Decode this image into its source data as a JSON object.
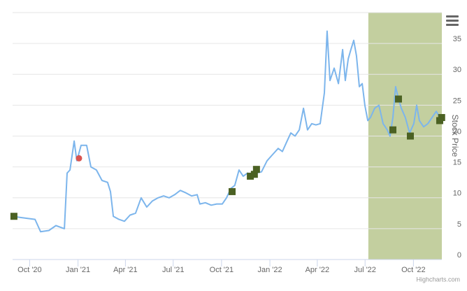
{
  "chart_data": {
    "type": "line",
    "y_axis_title": "Stock Price",
    "credits": "Highcharts.com",
    "xlim": [
      2020.659,
      2022.896
    ],
    "ylim": [
      0,
      40
    ],
    "xticks": [
      {
        "value": 2020.748,
        "label": "Oct '20"
      },
      {
        "value": 2021.0,
        "label": "Jan '21"
      },
      {
        "value": 2021.247,
        "label": "Apr '21"
      },
      {
        "value": 2021.496,
        "label": "Jul '21"
      },
      {
        "value": 2021.748,
        "label": "Oct '21"
      },
      {
        "value": 2022.0,
        "label": "Jan '22"
      },
      {
        "value": 2022.247,
        "label": "Apr '22"
      },
      {
        "value": 2022.496,
        "label": "Jul '22"
      },
      {
        "value": 2022.748,
        "label": "Oct '22"
      }
    ],
    "yticks": [
      0,
      5,
      10,
      15,
      20,
      25,
      30,
      35
    ],
    "grid": true,
    "plot_band": {
      "from": 2022.513,
      "to": 2022.896,
      "color": "#c3cf9f"
    },
    "series": [
      {
        "color": "#7cb5ec",
        "marker": "none",
        "x": [
          2020.659,
          2020.703,
          2020.776,
          2020.805,
          2020.848,
          2020.885,
          2020.929,
          2020.943,
          2020.958,
          2020.98,
          2020.994,
          2021.016,
          2021.045,
          2021.067,
          2021.096,
          2021.125,
          2021.154,
          2021.169,
          2021.184,
          2021.213,
          2021.242,
          2021.271,
          2021.3,
          2021.329,
          2021.358,
          2021.388,
          2021.417,
          2021.446,
          2021.475,
          2021.504,
          2021.533,
          2021.562,
          2021.592,
          2021.621,
          2021.635,
          2021.664,
          2021.694,
          2021.723,
          2021.752,
          2021.774,
          2021.796,
          2021.817,
          2021.839,
          2021.861,
          2021.883,
          2021.905,
          2021.927,
          2021.956,
          2021.985,
          2022.014,
          2022.043,
          2022.065,
          2022.087,
          2022.109,
          2022.131,
          2022.153,
          2022.175,
          2022.196,
          2022.218,
          2022.24,
          2022.262,
          2022.284,
          2022.298,
          2022.313,
          2022.335,
          2022.357,
          2022.379,
          2022.393,
          2022.408,
          2022.422,
          2022.437,
          2022.451,
          2022.466,
          2022.481,
          2022.495,
          2022.51,
          2022.524,
          2022.546,
          2022.568,
          2022.59,
          2022.612,
          2022.626,
          2022.641,
          2022.655,
          2022.67,
          2022.685,
          2022.706,
          2022.728,
          2022.75,
          2022.765,
          2022.779,
          2022.801,
          2022.823,
          2022.845,
          2022.867,
          2022.896
        ],
        "values": [
          7,
          6.8,
          6.5,
          4.5,
          4.7,
          5.5,
          5.0,
          14,
          14.5,
          19.2,
          16,
          18.5,
          18.5,
          15,
          14.5,
          12.8,
          12.5,
          11,
          7,
          6.5,
          6.2,
          7.2,
          7.5,
          10,
          8.5,
          9.5,
          10,
          10.3,
          10,
          10.5,
          11.2,
          10.8,
          10.3,
          10.5,
          9,
          9.2,
          8.8,
          9,
          9,
          10,
          11.5,
          12,
          14.5,
          13.5,
          14,
          13.2,
          14,
          14.2,
          16,
          17,
          18,
          17.5,
          19,
          20.5,
          20,
          21,
          24.5,
          21,
          22,
          21.8,
          22,
          27,
          37,
          29,
          31,
          28.5,
          34,
          29,
          32.5,
          34,
          35.5,
          33,
          28,
          28.5,
          25,
          22.5,
          23,
          24.5,
          25,
          22,
          21,
          20,
          23,
          28,
          26,
          24.5,
          23,
          20.5,
          22,
          25,
          22.5,
          21.5,
          22,
          23,
          24,
          22.5
        ]
      },
      {
        "color": "#4b6123",
        "marker": "square",
        "x": [
          2020.666,
          2021.803,
          2021.898,
          2021.919,
          2021.93,
          2022.641,
          2022.67,
          2022.732,
          2022.885,
          2022.895
        ],
        "values": [
          7,
          11,
          13.5,
          13.8,
          14.6,
          21,
          26,
          20,
          22.5,
          23
        ]
      },
      {
        "color": "#d9534f",
        "marker": "circle",
        "x": [
          2021.005
        ],
        "values": [
          16.4
        ]
      }
    ]
  }
}
